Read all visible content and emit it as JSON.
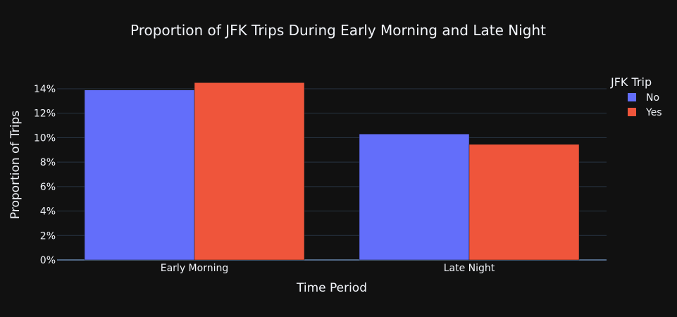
{
  "chart_data": {
    "type": "bar",
    "title": "Proportion of JFK Trips During Early Morning and Late Night",
    "xlabel": "Time Period",
    "ylabel": "Proportion of Trips",
    "categories": [
      "Early Morning",
      "Late Night"
    ],
    "series": [
      {
        "name": "No",
        "values": [
          13.9,
          10.3
        ]
      },
      {
        "name": "Yes",
        "values": [
          14.5,
          9.45
        ]
      }
    ],
    "ylim": [
      0,
      15.5
    ],
    "yticks": [
      0,
      2,
      4,
      6,
      8,
      10,
      12,
      14
    ],
    "ytick_format": "percent",
    "legend_title": "JFK Trip",
    "legend_position": "right-top",
    "grid": true,
    "colors": {
      "background": "#111111",
      "No": "#636efa",
      "Yes": "#ef553b",
      "text": "#f2f5fa",
      "grid": "#283442",
      "zeroline": "#506784"
    }
  }
}
